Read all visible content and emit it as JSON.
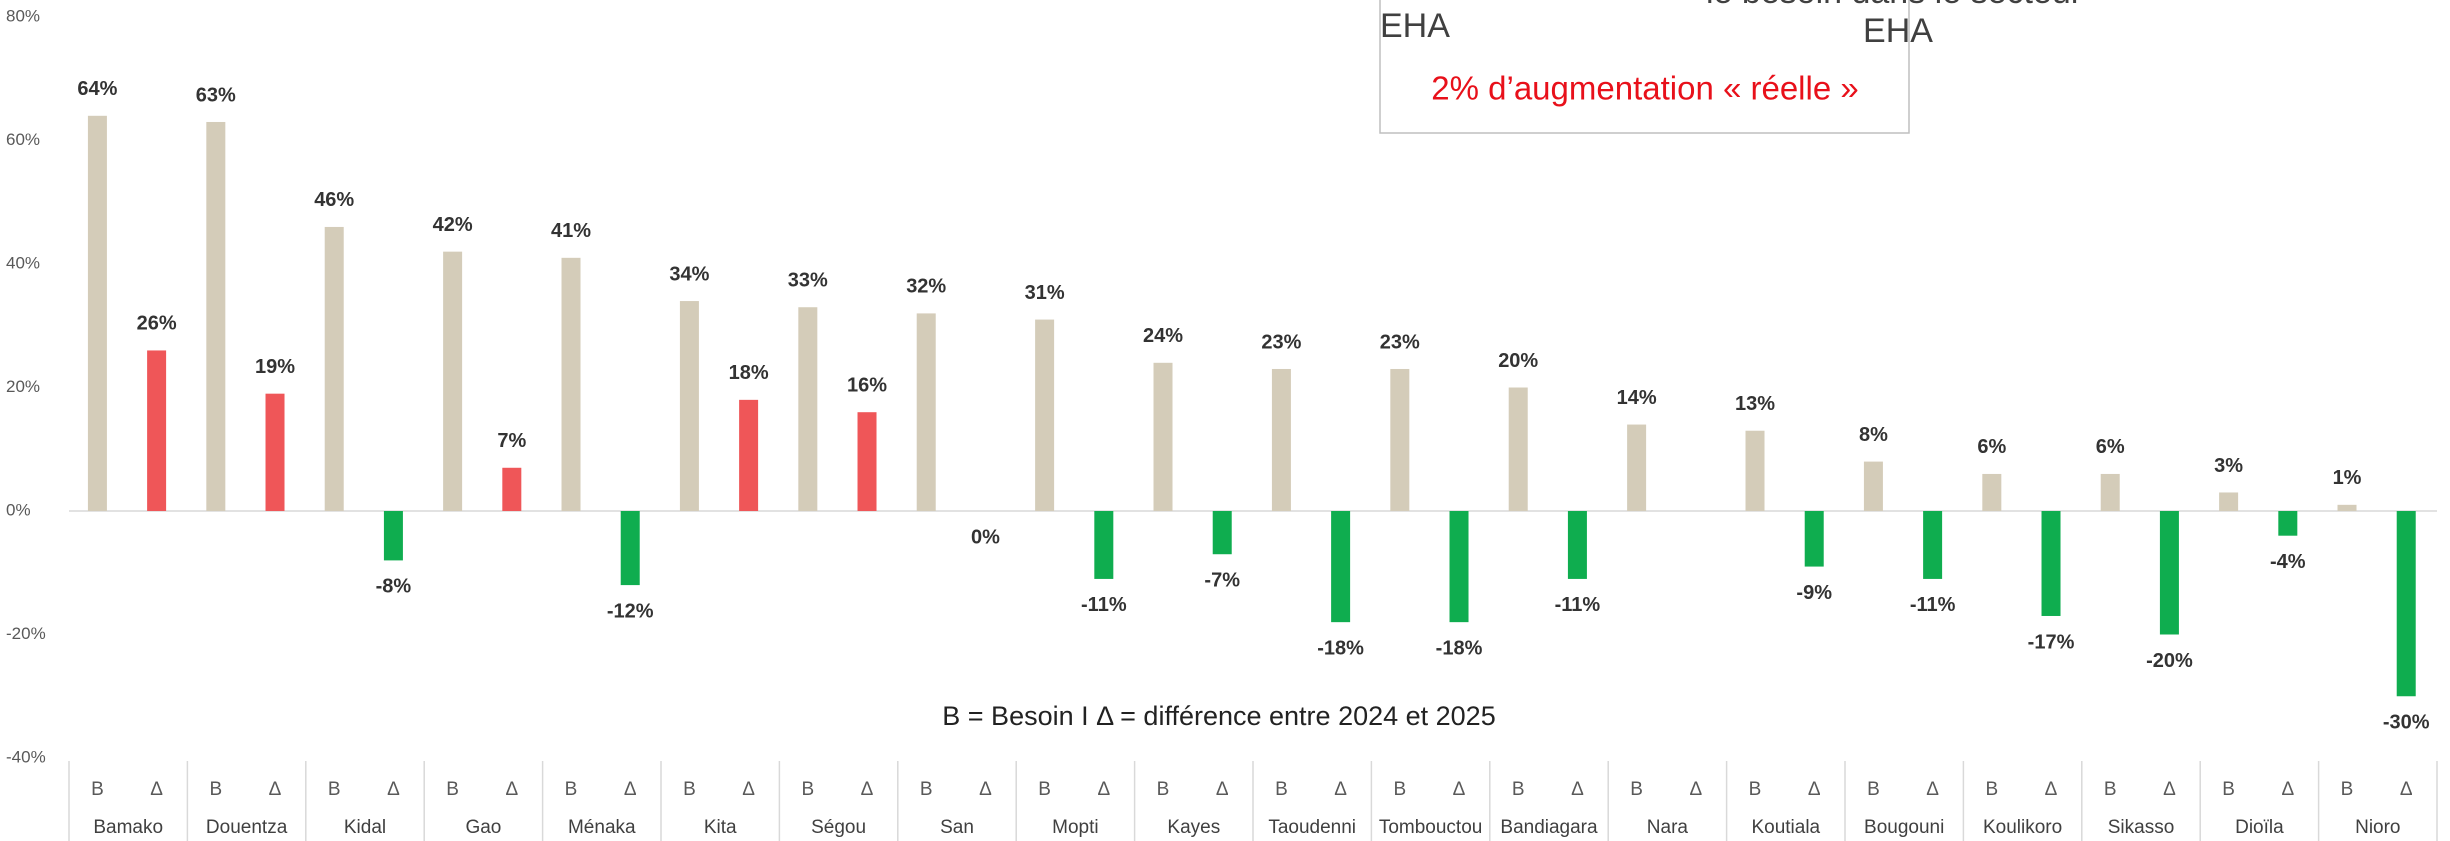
{
  "chart_data": {
    "type": "bar",
    "annotations": [
      "EHA",
      "le besoin dans le secteur",
      "EHA",
      "2% d’augmentation « réelle »",
      "B = Besoin I Δ = différence entre 2024 et 2025"
    ],
    "categories": [
      "Bamako",
      "Douentza",
      "Kidal",
      "Gao",
      "Ménaka",
      "Kita",
      "Ségou",
      "San",
      "Mopti",
      "Kayes",
      "Taoudenni",
      "Tombouctou",
      "Bandiagara",
      "Nara",
      "Koutiala",
      "Bougouni",
      "Koulikoro",
      "Sikasso",
      "Dioïla",
      "Nioro"
    ],
    "series": [
      {
        "name": "B",
        "color": "#d4ccb9",
        "values": [
          64,
          63,
          46,
          42,
          41,
          34,
          33,
          32,
          31,
          24,
          23,
          23,
          20,
          14,
          13,
          8,
          6,
          6,
          3,
          1
        ],
        "value_labels": [
          "64%",
          "63%",
          "46%",
          "42%",
          "41%",
          "34%",
          "33%",
          "32%",
          "31%",
          "24%",
          "23%",
          "23%",
          "20%",
          "14%",
          "13%",
          "8%",
          "6%",
          "6%",
          "3%",
          "1%"
        ]
      },
      {
        "name": "Δ",
        "color": "#ef5658",
        "negative_color": "#0fad4f",
        "values": [
          26,
          19,
          -8,
          7,
          -12,
          18,
          16,
          0,
          -11,
          -7,
          -18,
          -18,
          -11,
          null,
          -9,
          -11,
          -17,
          -20,
          -4,
          -30
        ],
        "value_labels": [
          "26%",
          "19%",
          "-8%",
          "7%",
          "-12%",
          "18%",
          "16%",
          "0%",
          "-11%",
          "-7%",
          "-18%",
          "-18%",
          "-11%",
          null,
          "-9%",
          "-11%",
          "-17%",
          "-20%",
          "-4%",
          "-30%"
        ]
      }
    ],
    "ylim": [
      -40,
      80
    ],
    "yticks": [
      {
        "value": -40,
        "label": "-40%"
      },
      {
        "value": -20,
        "label": "-20%"
      },
      {
        "value": 0,
        "label": "0%"
      },
      {
        "value": 20,
        "label": "20%"
      },
      {
        "value": 40,
        "label": "40%"
      },
      {
        "value": 60,
        "label": "60%"
      },
      {
        "value": 80,
        "label": "80%"
      }
    ],
    "grid": false
  }
}
